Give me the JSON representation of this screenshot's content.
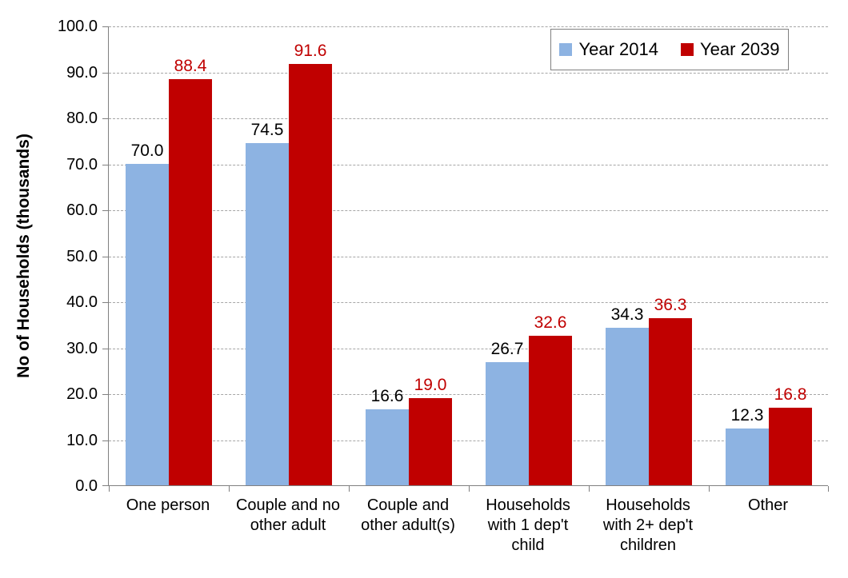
{
  "chart_data": {
    "type": "bar",
    "title": "",
    "xlabel": "",
    "ylabel": "No of Households (thousands)",
    "ylim": [
      0,
      100
    ],
    "ytick_step": 10,
    "ytick_labels": [
      "0.0",
      "10.0",
      "20.0",
      "30.0",
      "40.0",
      "50.0",
      "60.0",
      "70.0",
      "80.0",
      "90.0",
      "100.0"
    ],
    "grid": "horizontal-dashed",
    "legend_position": "top-right",
    "categories": [
      "One person",
      "Couple and no other adult",
      "Couple and other adult(s)",
      "Households with 1 dep't child",
      "Households with 2+ dep't children",
      "Other"
    ],
    "series": [
      {
        "name": "Year 2014",
        "color": "#8DB3E2",
        "label_color": "#000000",
        "values": [
          70.0,
          74.5,
          16.6,
          26.7,
          34.3,
          12.3
        ]
      },
      {
        "name": "Year 2039",
        "color": "#C00000",
        "label_color": "#C00000",
        "values": [
          88.4,
          91.6,
          19.0,
          32.6,
          36.3,
          16.8
        ]
      }
    ]
  }
}
